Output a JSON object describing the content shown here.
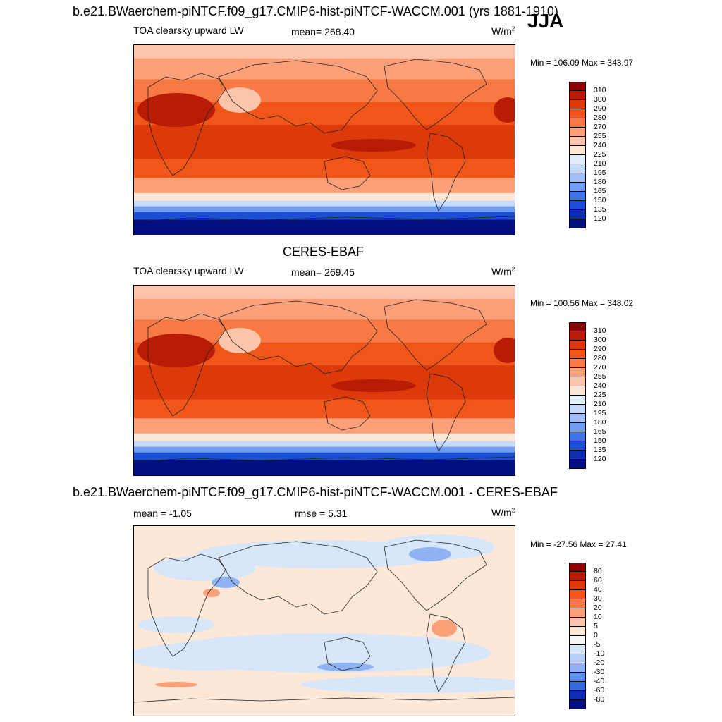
{
  "season": "JJA",
  "panels": [
    {
      "title": "b.e21.BWaerchem-piNTCF.f09_g17.CMIP6-hist-piNTCF-WACCM.001 (yrs 1881-1910)",
      "left_label": "TOA clearsky upward LW",
      "center_label": "mean= 268.40",
      "units_base": "W/m",
      "units_exp": "2",
      "minmax": "Min = 106.09 Max = 343.97",
      "kind": "field",
      "colorbar": {
        "labels": [
          "310",
          "300",
          "290",
          "280",
          "270",
          "255",
          "240",
          "225",
          "210",
          "195",
          "180",
          "165",
          "150",
          "135",
          "120"
        ],
        "colors": [
          "#8b0000",
          "#b81c05",
          "#dc3a0b",
          "#f0551a",
          "#f77a45",
          "#fca07a",
          "#fcc4a8",
          "#fde8d8",
          "#e3eefb",
          "#c6dafb",
          "#9fbdf6",
          "#709df0",
          "#3f74e6",
          "#1b4fd6",
          "#0b2fb0",
          "#030f80"
        ]
      }
    },
    {
      "title": "CERES-EBAF",
      "left_label": "TOA clearsky upward LW",
      "center_label": "mean= 269.45",
      "units_base": "W/m",
      "units_exp": "2",
      "minmax": "Min = 100.56 Max = 348.02",
      "kind": "field",
      "colorbar": {
        "labels": [
          "310",
          "300",
          "290",
          "280",
          "270",
          "255",
          "240",
          "225",
          "210",
          "195",
          "180",
          "165",
          "150",
          "135",
          "120"
        ],
        "colors": [
          "#8b0000",
          "#b81c05",
          "#dc3a0b",
          "#f0551a",
          "#f77a45",
          "#fca07a",
          "#fcc4a8",
          "#fde8d8",
          "#e3eefb",
          "#c6dafb",
          "#9fbdf6",
          "#709df0",
          "#3f74e6",
          "#1b4fd6",
          "#0b2fb0",
          "#030f80"
        ]
      }
    },
    {
      "title": "b.e21.BWaerchem-piNTCF.f09_g17.CMIP6-hist-piNTCF-WACCM.001 - CERES-EBAF",
      "left_label": "mean =  -1.05",
      "center_label": "rmse =   5.31",
      "units_base": "W/m",
      "units_exp": "2",
      "minmax": "Min = -27.56 Max =  27.41",
      "kind": "diff",
      "colorbar": {
        "labels": [
          "80",
          "60",
          "40",
          "30",
          "20",
          "10",
          "5",
          "0",
          "-5",
          "-10",
          "-20",
          "-30",
          "-40",
          "-60",
          "-80"
        ],
        "colors": [
          "#8b0000",
          "#b81c05",
          "#dc3a0b",
          "#f0551a",
          "#f77a45",
          "#fca07a",
          "#fcc4a8",
          "#fde8d8",
          "#f6f6f6",
          "#d8e6fa",
          "#b6cff7",
          "#8fb2f2",
          "#6090ea",
          "#3468df",
          "#0b2fb0",
          "#030f80"
        ]
      }
    }
  ]
}
